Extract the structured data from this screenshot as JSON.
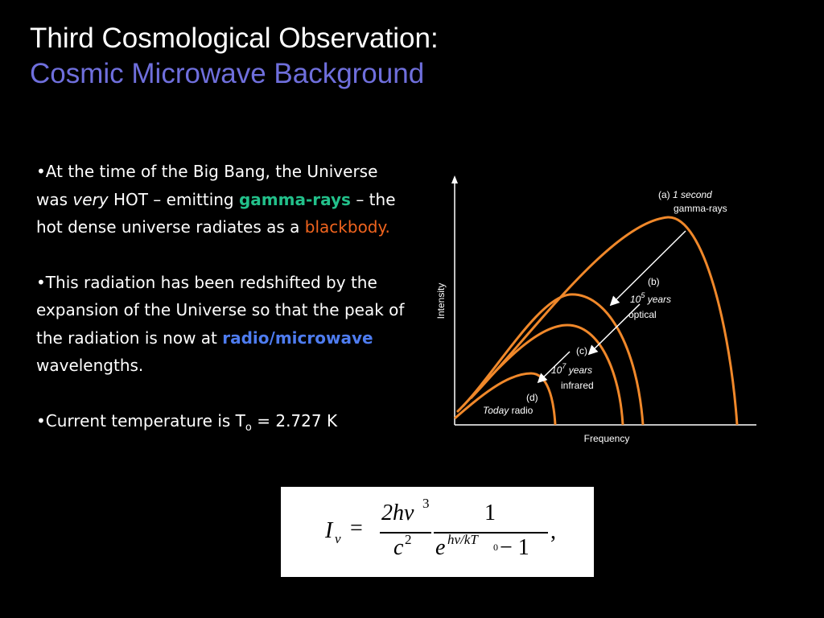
{
  "title": {
    "line1": "Third Cosmological Observation:",
    "line2": "Cosmic Microwave Background"
  },
  "bullets": [
    {
      "b1_a": "•At the time of the Big Bang, the Universe was ",
      "b1_very": "very",
      "b1_b": " HOT – emitting ",
      "b1_gamma": "gamma-rays",
      "b1_c": " – the hot dense universe radiates as a ",
      "b1_blackbody": "blackbody."
    },
    {
      "b2_a": "•This radiation has been redshifted by the expansion of the Universe so that the peak of the radiation is now at ",
      "b2_radio": "radio/microwave",
      "b2_b": " wavelengths."
    },
    {
      "b3_a": "•Current  temperature is T",
      "b3_sub": "o",
      "b3_b": " = 2.727 K"
    }
  ],
  "diagram": {
    "y_axis_label": "Intensity",
    "x_axis_label": "Frequency",
    "curves": [
      {
        "letter": "(a)",
        "time": "1 second",
        "band": "gamma-rays"
      },
      {
        "letter": "(b)",
        "time_base": "10",
        "time_exp": "5",
        "time_unit": " years",
        "band": "optical"
      },
      {
        "letter": "(c)",
        "time_base": "10",
        "time_exp": "7",
        "time_unit": " years",
        "band": "infrared"
      },
      {
        "letter": "(d)",
        "time": "Today",
        "band": "radio"
      }
    ],
    "curve_color": "#f0882a"
  },
  "formula": {
    "lhs": "I",
    "lhs_sub": "ν",
    "eq": "=",
    "num1": "2hν",
    "num1_exp": "3",
    "den1": "c",
    "den1_exp": "2",
    "num2": "1",
    "den2_base": "e",
    "den2_exp": "hν/kT",
    "den2_exp_sub": "0",
    "den2_tail": " − 1",
    "trail": ","
  }
}
